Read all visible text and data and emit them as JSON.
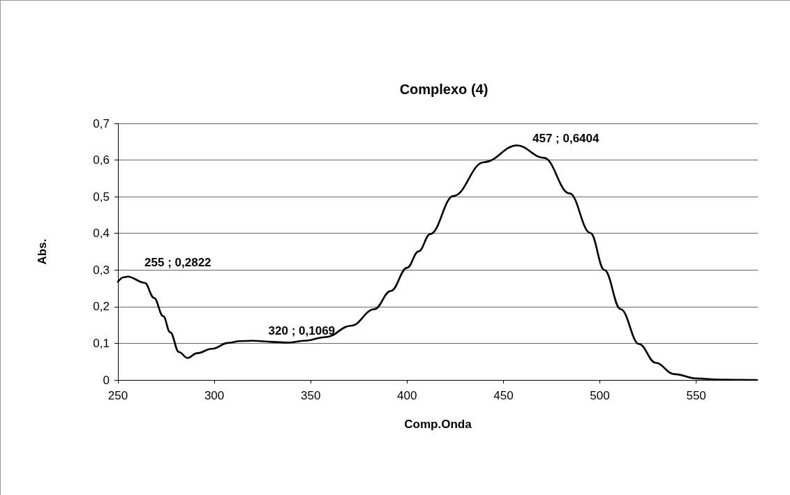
{
  "chart_data": {
    "type": "line",
    "title": "Complexo (4)",
    "xlabel": "Comp.Onda",
    "ylabel": "Abs.",
    "x": [
      250,
      253,
      255,
      263.9,
      268.7,
      273.5,
      277.1,
      281.7,
      286.1,
      291,
      298.8,
      307.2,
      313.3,
      320,
      330,
      338.6,
      347,
      357.8,
      371,
      383,
      391.6,
      400,
      406,
      412,
      424.1,
      439.8,
      457,
      471,
      484.3,
      495.1,
      502.4,
      510.8,
      520.4,
      528.9,
      538.5,
      550.5,
      562.5,
      581.5
    ],
    "series": [
      {
        "color": "#000000",
        "values": [
          0.268,
          0.28,
          0.282,
          0.265,
          0.224,
          0.174,
          0.13,
          0.076,
          0.06,
          0.073,
          0.085,
          0.101,
          0.106,
          0.107,
          0.104,
          0.102,
          0.107,
          0.117,
          0.148,
          0.193,
          0.243,
          0.306,
          0.351,
          0.398,
          0.502,
          0.594,
          0.64,
          0.606,
          0.509,
          0.401,
          0.3,
          0.193,
          0.098,
          0.047,
          0.016,
          0.004,
          0.001,
          0
        ]
      }
    ],
    "annotations": [
      {
        "text": "255 ; 0,2822",
        "x": 255,
        "y": 0.2822
      },
      {
        "text": "320 ; 0,1069",
        "x": 320,
        "y": 0.1069
      },
      {
        "text": "457 ; 0,6404",
        "x": 457,
        "y": 0.6404
      }
    ],
    "xlim": [
      250,
      582
    ],
    "xticks": [
      250,
      300,
      350,
      400,
      450,
      500,
      550
    ],
    "ylim": [
      0,
      0.7
    ],
    "yticks": [
      0,
      {
        "value": 0.1,
        "label": "0,1"
      },
      {
        "value": 0.2,
        "label": "0,2"
      },
      {
        "value": 0.3,
        "label": "0,3"
      },
      {
        "value": 0.4,
        "label": "0,4"
      },
      {
        "value": 0.5,
        "label": "0,5"
      },
      {
        "value": 0.6,
        "label": "0,6"
      },
      {
        "value": 0.7,
        "label": "0,7"
      }
    ],
    "grid": "y",
    "marker": "none",
    "line_style": "solid"
  }
}
